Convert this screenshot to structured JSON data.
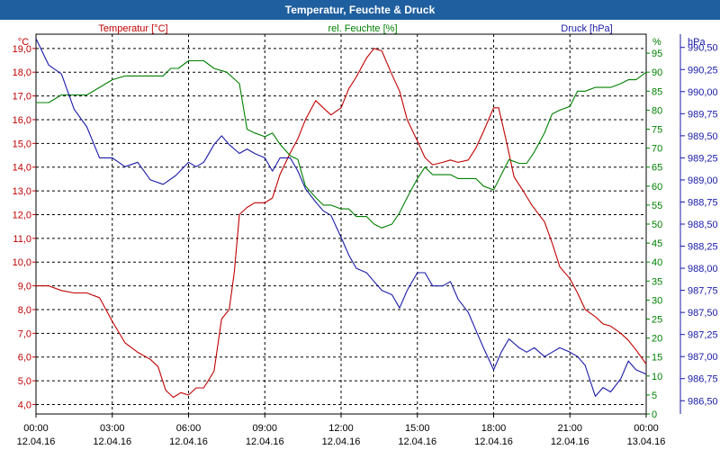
{
  "window": {
    "title": "Temperatur, Feuchte & Druck"
  },
  "colors": {
    "title_bg": "#1f5f9f",
    "temperature": "#c00000",
    "humidity": "#008000",
    "pressure": "#1a1aa8",
    "grid": "#000000"
  },
  "chart_data": {
    "type": "line",
    "title": "Temperatur, Feuchte & Druck",
    "grid": true,
    "x": {
      "unit": "hours since 12.04.16 00:00",
      "range": [
        0,
        24
      ],
      "ticks": [
        {
          "value": 0,
          "time": "00:00",
          "date": "12.04.16"
        },
        {
          "value": 3,
          "time": "03:00",
          "date": "12.04.16"
        },
        {
          "value": 6,
          "time": "06:00",
          "date": "12.04.16"
        },
        {
          "value": 9,
          "time": "09:00",
          "date": "12.04.16"
        },
        {
          "value": 12,
          "time": "12:00",
          "date": "12.04.16"
        },
        {
          "value": 15,
          "time": "15:00",
          "date": "12.04.16"
        },
        {
          "value": 18,
          "time": "18:00",
          "date": "12.04.16"
        },
        {
          "value": 21,
          "time": "21:00",
          "date": "12.04.16"
        },
        {
          "value": 24,
          "time": "00:00",
          "date": "13.04.16"
        }
      ]
    },
    "axes": {
      "temperature": {
        "unit": "°C",
        "label": "Temperatur [°C]",
        "range": [
          3.6,
          19.6
        ],
        "ticks": [
          "4,0",
          "5,0",
          "6,0",
          "7,0",
          "8,0",
          "9,0",
          "10,0",
          "11,0",
          "12,0",
          "13,0",
          "14,0",
          "15,0",
          "16,0",
          "17,0",
          "18,0",
          "19,0"
        ]
      },
      "humidity": {
        "unit": "%",
        "label": "rel. Feuchte [%]",
        "range": [
          0,
          100
        ],
        "ticks": [
          "0",
          "5",
          "10",
          "15",
          "20",
          "25",
          "30",
          "35",
          "40",
          "45",
          "50",
          "55",
          "60",
          "65",
          "70",
          "75",
          "80",
          "85",
          "90",
          "95"
        ]
      },
      "pressure": {
        "unit": "hPa",
        "label": "Druck [hPa]",
        "range": [
          986.35,
          990.65
        ],
        "ticks": [
          "986,50",
          "986,75",
          "987,00",
          "987,25",
          "987,50",
          "987,75",
          "988,00",
          "988,25",
          "988,50",
          "988,75",
          "989,00",
          "989,25",
          "989,50",
          "989,75",
          "990,00",
          "990,25",
          "990,50"
        ]
      }
    },
    "series": [
      {
        "name": "Temperatur [°C]",
        "axis": "temperature",
        "points": [
          [
            0,
            9.0
          ],
          [
            0.5,
            9.0
          ],
          [
            1,
            8.8
          ],
          [
            1.5,
            8.7
          ],
          [
            2,
            8.7
          ],
          [
            2.5,
            8.5
          ],
          [
            3,
            7.5
          ],
          [
            3.5,
            6.6
          ],
          [
            4,
            6.2
          ],
          [
            4.5,
            5.9
          ],
          [
            4.8,
            5.6
          ],
          [
            5.1,
            4.6
          ],
          [
            5.4,
            4.3
          ],
          [
            5.7,
            4.5
          ],
          [
            6,
            4.4
          ],
          [
            6.3,
            4.7
          ],
          [
            6.6,
            4.7
          ],
          [
            7,
            5.4
          ],
          [
            7.3,
            7.6
          ],
          [
            7.6,
            8.0
          ],
          [
            7.8,
            9.6
          ],
          [
            8,
            12.0
          ],
          [
            8.3,
            12.3
          ],
          [
            8.6,
            12.5
          ],
          [
            9,
            12.5
          ],
          [
            9.3,
            12.7
          ],
          [
            9.6,
            13.7
          ],
          [
            10,
            14.6
          ],
          [
            10.3,
            15.2
          ],
          [
            10.6,
            16.0
          ],
          [
            11,
            16.8
          ],
          [
            11.3,
            16.5
          ],
          [
            11.6,
            16.2
          ],
          [
            12,
            16.5
          ],
          [
            12.3,
            17.3
          ],
          [
            12.6,
            17.8
          ],
          [
            13,
            18.6
          ],
          [
            13.3,
            19.0
          ],
          [
            13.6,
            18.9
          ],
          [
            14,
            17.9
          ],
          [
            14.3,
            17.2
          ],
          [
            14.6,
            16.0
          ],
          [
            15,
            15.1
          ],
          [
            15.3,
            14.4
          ],
          [
            15.6,
            14.1
          ],
          [
            16,
            14.2
          ],
          [
            16.3,
            14.3
          ],
          [
            16.6,
            14.2
          ],
          [
            17,
            14.3
          ],
          [
            17.3,
            14.8
          ],
          [
            17.6,
            15.5
          ],
          [
            18,
            16.5
          ],
          [
            18.2,
            16.5
          ],
          [
            18.5,
            15.1
          ],
          [
            18.8,
            13.6
          ],
          [
            19.1,
            13.1
          ],
          [
            19.5,
            12.4
          ],
          [
            20,
            11.7
          ],
          [
            20.3,
            10.8
          ],
          [
            20.6,
            9.8
          ],
          [
            21,
            9.3
          ],
          [
            21.3,
            8.7
          ],
          [
            21.6,
            8.0
          ],
          [
            22,
            7.7
          ],
          [
            22.3,
            7.4
          ],
          [
            22.6,
            7.3
          ],
          [
            23,
            7.0
          ],
          [
            23.3,
            6.7
          ],
          [
            23.6,
            6.3
          ],
          [
            24,
            5.7
          ]
        ]
      },
      {
        "name": "rel. Feuchte [%]",
        "axis": "humidity",
        "points": [
          [
            0,
            82
          ],
          [
            0.5,
            82
          ],
          [
            1,
            84
          ],
          [
            1.5,
            84
          ],
          [
            2,
            84
          ],
          [
            2.5,
            86
          ],
          [
            3,
            88
          ],
          [
            3.5,
            89
          ],
          [
            4,
            89
          ],
          [
            4.5,
            89
          ],
          [
            5,
            89
          ],
          [
            5.3,
            91
          ],
          [
            5.6,
            91
          ],
          [
            6,
            93
          ],
          [
            6.3,
            93
          ],
          [
            6.6,
            93
          ],
          [
            7,
            91
          ],
          [
            7.5,
            90
          ],
          [
            8,
            87
          ],
          [
            8.3,
            75
          ],
          [
            8.6,
            74
          ],
          [
            9,
            73
          ],
          [
            9.3,
            74
          ],
          [
            9.6,
            71
          ],
          [
            10,
            68
          ],
          [
            10.3,
            67
          ],
          [
            10.6,
            60
          ],
          [
            11,
            57
          ],
          [
            11.3,
            55
          ],
          [
            11.6,
            55
          ],
          [
            12,
            54
          ],
          [
            12.3,
            54
          ],
          [
            12.6,
            52
          ],
          [
            13,
            52
          ],
          [
            13.3,
            50
          ],
          [
            13.6,
            49
          ],
          [
            14,
            50
          ],
          [
            14.3,
            53
          ],
          [
            14.6,
            57
          ],
          [
            15,
            62
          ],
          [
            15.3,
            65
          ],
          [
            15.6,
            63
          ],
          [
            16,
            63
          ],
          [
            16.3,
            63
          ],
          [
            16.6,
            62
          ],
          [
            17,
            62
          ],
          [
            17.3,
            62
          ],
          [
            17.6,
            60
          ],
          [
            18,
            59
          ],
          [
            18.3,
            63
          ],
          [
            18.6,
            67
          ],
          [
            19,
            66
          ],
          [
            19.3,
            66
          ],
          [
            19.6,
            69
          ],
          [
            20,
            74
          ],
          [
            20.3,
            79
          ],
          [
            20.6,
            80
          ],
          [
            21,
            81
          ],
          [
            21.3,
            85
          ],
          [
            21.6,
            85
          ],
          [
            22,
            86
          ],
          [
            22.3,
            86
          ],
          [
            22.6,
            86
          ],
          [
            23,
            87
          ],
          [
            23.3,
            88
          ],
          [
            23.6,
            88
          ],
          [
            24,
            90
          ]
        ]
      },
      {
        "name": "Druck [hPa]",
        "axis": "pressure",
        "points": [
          [
            0,
            990.6
          ],
          [
            0.5,
            990.3
          ],
          [
            1,
            990.2
          ],
          [
            1.5,
            989.8
          ],
          [
            2,
            989.6
          ],
          [
            2.5,
            989.25
          ],
          [
            3,
            989.25
          ],
          [
            3.5,
            989.15
          ],
          [
            4,
            989.2
          ],
          [
            4.5,
            989.0
          ],
          [
            5,
            988.95
          ],
          [
            5.5,
            989.05
          ],
          [
            6,
            989.2
          ],
          [
            6.3,
            989.15
          ],
          [
            6.6,
            989.2
          ],
          [
            7,
            989.4
          ],
          [
            7.3,
            989.5
          ],
          [
            7.6,
            989.4
          ],
          [
            8,
            989.3
          ],
          [
            8.3,
            989.35
          ],
          [
            8.6,
            989.3
          ],
          [
            9,
            989.25
          ],
          [
            9.3,
            989.1
          ],
          [
            9.6,
            989.25
          ],
          [
            10,
            989.25
          ],
          [
            10.3,
            989.1
          ],
          [
            10.6,
            988.9
          ],
          [
            11,
            988.75
          ],
          [
            11.3,
            988.65
          ],
          [
            11.6,
            988.6
          ],
          [
            12,
            988.35
          ],
          [
            12.3,
            988.15
          ],
          [
            12.6,
            988.0
          ],
          [
            13,
            987.95
          ],
          [
            13.3,
            987.85
          ],
          [
            13.6,
            987.75
          ],
          [
            14,
            987.7
          ],
          [
            14.3,
            987.55
          ],
          [
            14.6,
            987.75
          ],
          [
            15,
            987.95
          ],
          [
            15.3,
            987.95
          ],
          [
            15.6,
            987.8
          ],
          [
            16,
            987.8
          ],
          [
            16.3,
            987.85
          ],
          [
            16.6,
            987.65
          ],
          [
            17,
            987.5
          ],
          [
            17.3,
            987.3
          ],
          [
            17.6,
            987.1
          ],
          [
            18,
            986.85
          ],
          [
            18.3,
            987.05
          ],
          [
            18.6,
            987.2
          ],
          [
            19,
            987.1
          ],
          [
            19.3,
            987.05
          ],
          [
            19.6,
            987.1
          ],
          [
            20,
            987.0
          ],
          [
            20.3,
            987.05
          ],
          [
            20.6,
            987.1
          ],
          [
            21,
            987.05
          ],
          [
            21.3,
            987.0
          ],
          [
            21.6,
            986.9
          ],
          [
            22,
            986.55
          ],
          [
            22.3,
            986.65
          ],
          [
            22.6,
            986.6
          ],
          [
            23,
            986.75
          ],
          [
            23.3,
            986.95
          ],
          [
            23.6,
            986.85
          ],
          [
            24,
            986.8
          ]
        ]
      }
    ]
  }
}
